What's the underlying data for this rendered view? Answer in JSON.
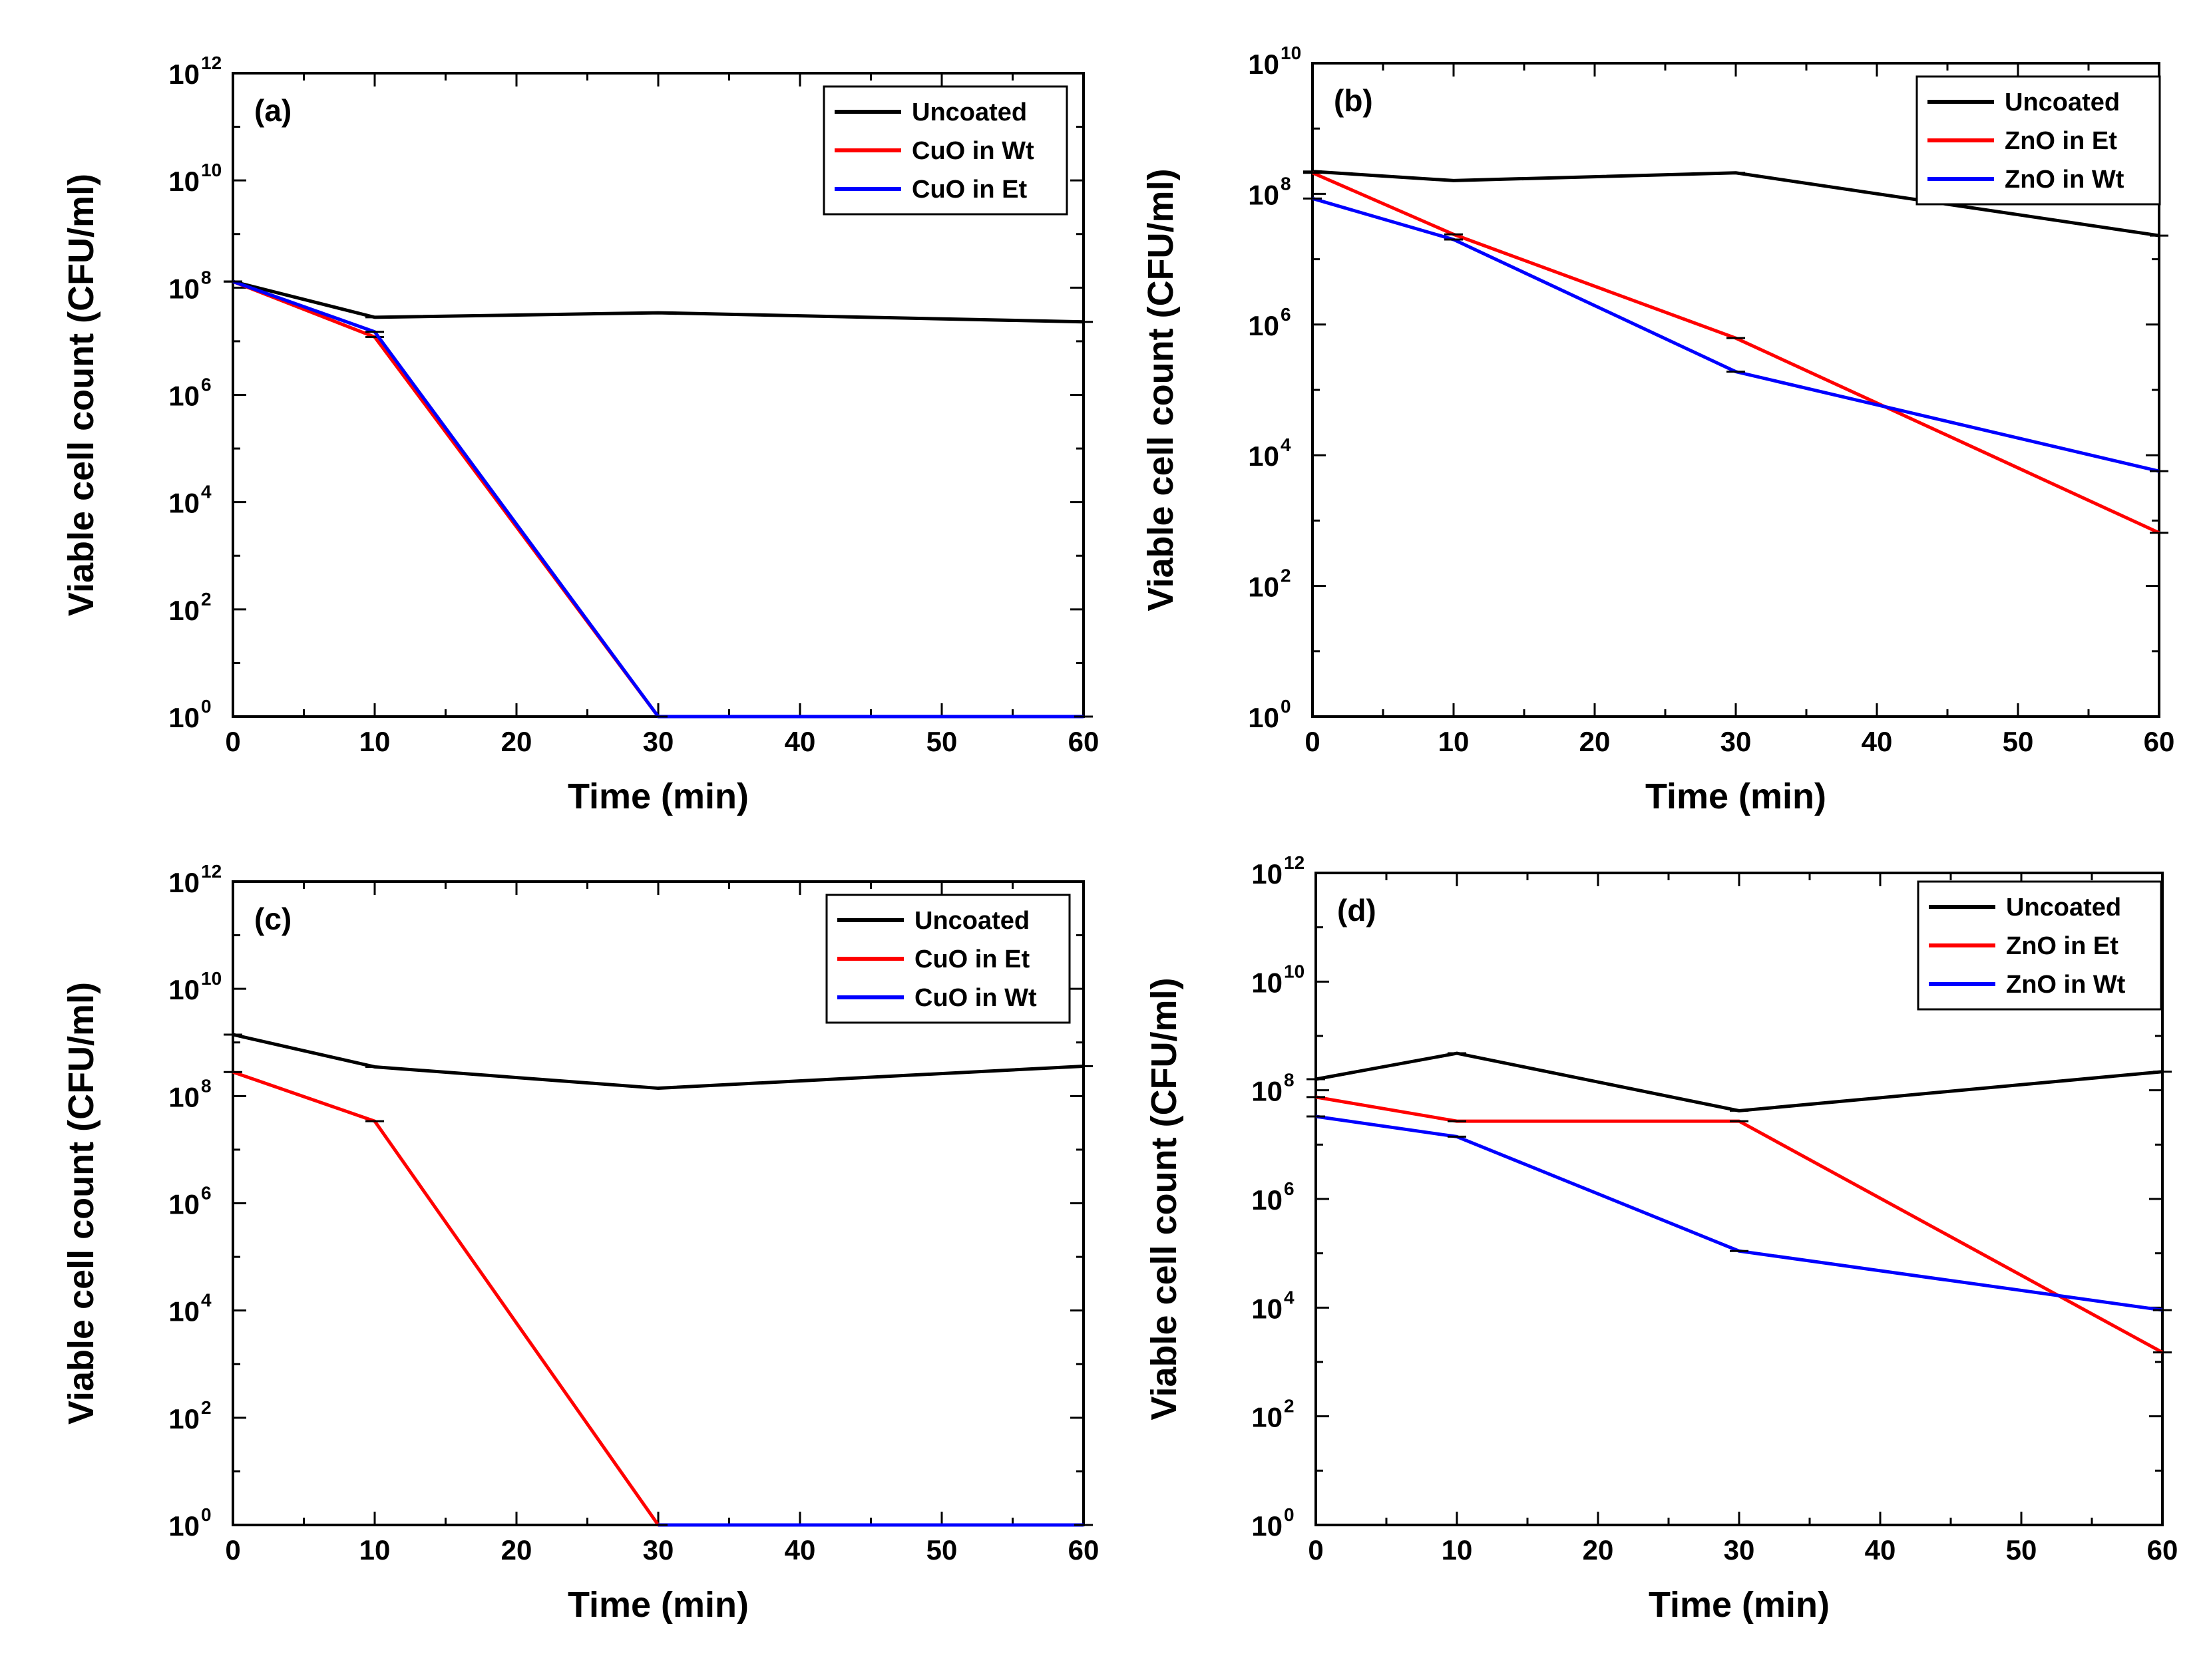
{
  "chart_data": [
    {
      "type": "line",
      "title": "(a)",
      "xlabel": "Time (min)",
      "ylabel": "Viable cell count (CFU/ml)",
      "yscale": "log",
      "xlim": [
        0,
        60
      ],
      "ylim_exp": [
        0,
        12
      ],
      "xticks": [
        "0",
        "10",
        "20",
        "30",
        "40",
        "50",
        "60"
      ],
      "yticks": [
        "10",
        "10",
        "10",
        "10",
        "10",
        "10",
        "10"
      ],
      "yticks_exp": [
        "0",
        "2",
        "4",
        "6",
        "8",
        "10",
        "12"
      ],
      "legend_position": "top-right",
      "x": [
        0,
        10,
        30,
        60
      ],
      "series": [
        {
          "name": "Uncoated",
          "color": "#000000",
          "values": [
            130000000.0,
            28000000.0,
            34000000.0,
            23000000.0
          ]
        },
        {
          "name": "CuO in Wt",
          "color": "#ff0000",
          "values": [
            130000000.0,
            12000000.0,
            1,
            1
          ]
        },
        {
          "name": "CuO in Et",
          "color": "#0000ff",
          "values": [
            130000000.0,
            15000000.0,
            1,
            1
          ]
        }
      ]
    },
    {
      "type": "line",
      "title": "(b)",
      "xlabel": "Time (min)",
      "ylabel": "Viable cell count (CFU/ml)",
      "yscale": "log",
      "xlim": [
        0,
        60
      ],
      "ylim_exp": [
        0,
        10
      ],
      "xticks": [
        "0",
        "10",
        "20",
        "30",
        "40",
        "50",
        "60"
      ],
      "yticks": [
        "10",
        "10",
        "10",
        "10",
        "10",
        "10"
      ],
      "yticks_exp": [
        "0",
        "2",
        "4",
        "6",
        "8",
        "10"
      ],
      "legend_position": "top-right",
      "x": [
        0,
        10,
        30,
        60
      ],
      "series": [
        {
          "name": "Uncoated",
          "color": "#000000",
          "values": [
            220000000.0,
            160000000.0,
            210000000.0,
            23000000.0
          ]
        },
        {
          "name": "ZnO in Et",
          "color": "#ff0000",
          "values": [
            210000000.0,
            24000000.0,
            620000.0,
            650
          ]
        },
        {
          "name": "ZnO in Wt",
          "color": "#0000ff",
          "values": [
            85000000.0,
            20000000.0,
            190000.0,
            5700
          ]
        }
      ]
    },
    {
      "type": "line",
      "title": "(c)",
      "xlabel": "Time (min)",
      "ylabel": "Viable cell count (CFU/ml)",
      "yscale": "log",
      "xlim": [
        0,
        60
      ],
      "ylim_exp": [
        0,
        12
      ],
      "xticks": [
        "0",
        "10",
        "20",
        "30",
        "40",
        "50",
        "60"
      ],
      "yticks": [
        "10",
        "10",
        "10",
        "10",
        "10",
        "10",
        "10"
      ],
      "yticks_exp": [
        "0",
        "2",
        "4",
        "6",
        "8",
        "10",
        "12"
      ],
      "legend_position": "top-right",
      "x": [
        0,
        10,
        30,
        60
      ],
      "series": [
        {
          "name": "Uncoated",
          "color": "#000000",
          "values": [
            1400000000.0,
            350000000.0,
            140000000.0,
            360000000.0
          ]
        },
        {
          "name": "CuO in Et",
          "color": "#ff0000",
          "values": [
            280000000.0,
            34000000.0,
            1,
            1
          ]
        },
        {
          "name": "CuO in Wt",
          "color": "#0000ff",
          "values": [
            null,
            null,
            1,
            1
          ]
        }
      ]
    },
    {
      "type": "line",
      "title": "(d)",
      "xlabel": "Time (min)",
      "ylabel": "Viable cell count (CFU/ml)",
      "yscale": "log",
      "xlim": [
        0,
        60
      ],
      "ylim_exp": [
        0,
        12
      ],
      "xticks": [
        "0",
        "10",
        "20",
        "30",
        "40",
        "50",
        "60"
      ],
      "yticks": [
        "10",
        "10",
        "10",
        "10",
        "10",
        "10",
        "10"
      ],
      "yticks_exp": [
        "0",
        "2",
        "4",
        "6",
        "8",
        "10",
        "12"
      ],
      "legend_position": "top-right",
      "x": [
        0,
        10,
        30,
        60
      ],
      "series": [
        {
          "name": "Uncoated",
          "color": "#000000",
          "values": [
            160000000.0,
            480000000.0,
            42000000.0,
            220000000.0
          ]
        },
        {
          "name": "ZnO in Et",
          "color": "#ff0000",
          "values": [
            75000000.0,
            27000000.0,
            27000000.0,
            1500
          ]
        },
        {
          "name": "ZnO in Wt",
          "color": "#0000ff",
          "values": [
            33000000.0,
            14000000.0,
            110000.0,
            9000
          ]
        }
      ]
    }
  ]
}
